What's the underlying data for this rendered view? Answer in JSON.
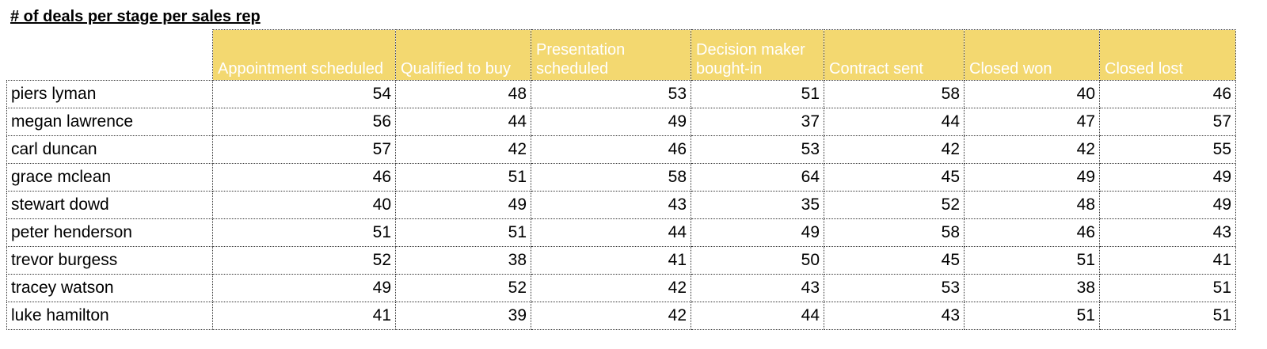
{
  "title": "# of deals per stage per sales rep",
  "columns": [
    "Appointment scheduled",
    "Qualified to buy",
    "Presentation scheduled",
    "Decision maker bought-in",
    "Contract sent",
    "Closed won",
    "Closed lost"
  ],
  "rows": [
    {
      "name": "piers lyman",
      "values": [
        54,
        48,
        53,
        51,
        58,
        40,
        46
      ]
    },
    {
      "name": "megan lawrence",
      "values": [
        56,
        44,
        49,
        37,
        44,
        47,
        57
      ]
    },
    {
      "name": "carl duncan",
      "values": [
        57,
        42,
        46,
        53,
        42,
        42,
        55
      ]
    },
    {
      "name": "grace mclean",
      "values": [
        46,
        51,
        58,
        64,
        45,
        49,
        49
      ]
    },
    {
      "name": "stewart dowd",
      "values": [
        40,
        49,
        43,
        35,
        52,
        48,
        49
      ]
    },
    {
      "name": "peter henderson",
      "values": [
        51,
        51,
        44,
        49,
        58,
        46,
        43
      ]
    },
    {
      "name": "trevor burgess",
      "values": [
        52,
        38,
        41,
        50,
        45,
        51,
        41
      ]
    },
    {
      "name": "tracey watson",
      "values": [
        49,
        52,
        42,
        43,
        53,
        38,
        51
      ]
    },
    {
      "name": "luke hamilton",
      "values": [
        41,
        39,
        42,
        44,
        43,
        51,
        51
      ]
    }
  ],
  "colors": {
    "header_fill": "#f3d870",
    "header_text": "#ffffff",
    "grid_line": "#333333"
  }
}
